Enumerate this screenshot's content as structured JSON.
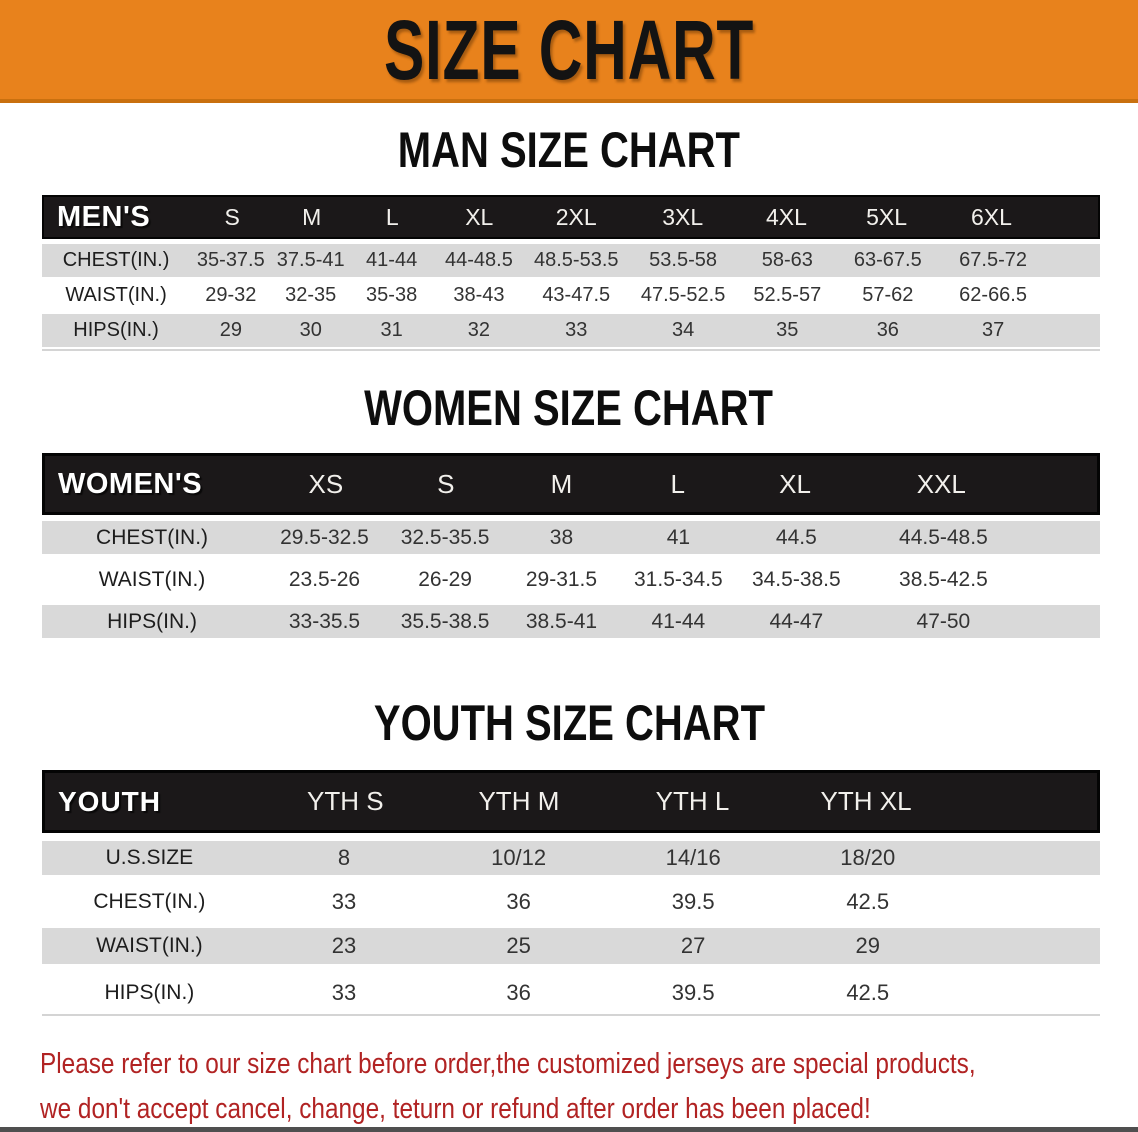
{
  "banner": {
    "title": "SIZE CHART"
  },
  "colors": {
    "banner_orange": "#E8821C",
    "banner_edge": "#C9700F",
    "header_black": "#1B1819",
    "row_gray": "#D9D9D9",
    "note_red": "#B12323"
  },
  "men": {
    "heading": "MAN SIZE CHART",
    "corner": "MEN'S",
    "sizes": [
      "S",
      "M",
      "L",
      "XL",
      "2XL",
      "3XL",
      "4XL",
      "5XL",
      "6XL"
    ],
    "rows": [
      {
        "label": "CHEST(IN.)",
        "values": [
          "35-37.5",
          "37.5-41",
          "41-44",
          "44-48.5",
          "48.5-53.5",
          "53.5-58",
          "58-63",
          "63-67.5",
          "67.5-72"
        ]
      },
      {
        "label": "WAIST(IN.)",
        "values": [
          "29-32",
          "32-35",
          "35-38",
          "38-43",
          "43-47.5",
          "47.5-52.5",
          "52.5-57",
          "57-62",
          "62-66.5"
        ]
      },
      {
        "label": "HIPS(IN.)",
        "values": [
          "29",
          "30",
          "31",
          "32",
          "33",
          "34",
          "35",
          "36",
          "37"
        ]
      }
    ]
  },
  "women": {
    "heading": "WOMEN SIZE CHART",
    "corner": "WOMEN'S",
    "sizes": [
      "XS",
      "S",
      "M",
      "L",
      "XL",
      "XXL"
    ],
    "rows": [
      {
        "label": "CHEST(IN.)",
        "values": [
          "29.5-32.5",
          "32.5-35.5",
          "38",
          "41",
          "44.5",
          "44.5-48.5"
        ]
      },
      {
        "label": "WAIST(IN.)",
        "values": [
          "23.5-26",
          "26-29",
          "29-31.5",
          "31.5-34.5",
          "34.5-38.5",
          "38.5-42.5"
        ]
      },
      {
        "label": "HIPS(IN.)",
        "values": [
          "33-35.5",
          "35.5-38.5",
          "38.5-41",
          "41-44",
          "44-47",
          "47-50"
        ]
      }
    ]
  },
  "youth": {
    "heading": "YOUTH SIZE CHART",
    "corner": "YOUTH",
    "sizes": [
      "YTH S",
      "YTH M",
      "YTH L",
      "YTH XL"
    ],
    "rows": [
      {
        "label": "U.S.SIZE",
        "values": [
          "8",
          "10/12",
          "14/16",
          "18/20"
        ]
      },
      {
        "label": "CHEST(IN.)",
        "values": [
          "33",
          "36",
          "39.5",
          "42.5"
        ]
      },
      {
        "label": "WAIST(IN.)",
        "values": [
          "23",
          "25",
          "27",
          "29"
        ]
      },
      {
        "label": "HIPS(IN.)",
        "values": [
          "33",
          "36",
          "39.5",
          "42.5"
        ]
      }
    ]
  },
  "footer": {
    "line1": "Please refer to our size chart before order,the customized jerseys are special products,",
    "line2": "we don't accept cancel, change, teturn or refund after order has been placed!"
  }
}
